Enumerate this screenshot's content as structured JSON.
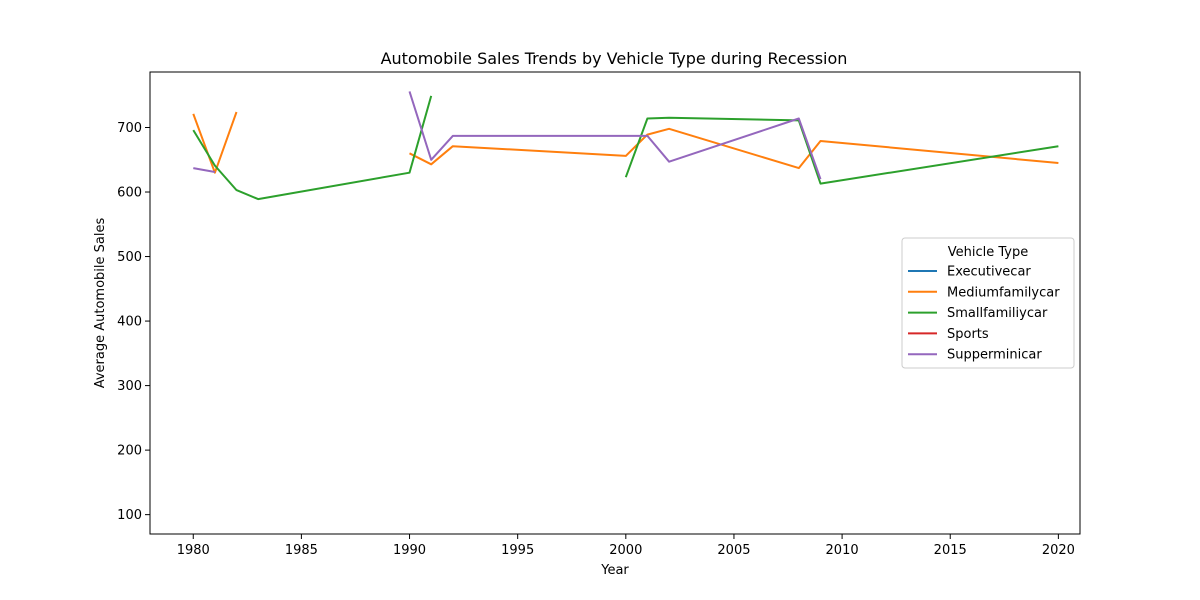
{
  "chart_data": {
    "type": "line",
    "title": "Automobile Sales Trends by Vehicle Type during Recession",
    "xlabel": "Year",
    "ylabel": "Average Automobile Sales",
    "xlim": [
      1978,
      2021
    ],
    "ylim": [
      70,
      786
    ],
    "xticks": [
      1980,
      1985,
      1990,
      1995,
      2000,
      2005,
      2010,
      2015,
      2020
    ],
    "yticks": [
      100,
      200,
      300,
      400,
      500,
      600,
      700
    ],
    "grid": false,
    "legend": {
      "title": "Vehicle Type",
      "placement": "center-right"
    },
    "series": [
      {
        "name": "Executivecar",
        "color": "#1f77b4",
        "points": []
      },
      {
        "name": "Mediumfamilycar",
        "color": "#ff7f0e",
        "points": [
          [
            1980,
            721
          ],
          [
            1981,
            630
          ],
          [
            1982,
            724
          ],
          null,
          [
            1990,
            660
          ],
          [
            1991,
            643
          ],
          [
            1992,
            671
          ],
          [
            2000,
            656
          ],
          [
            2001,
            689
          ],
          [
            2002,
            698
          ],
          [
            2008,
            637
          ],
          [
            2009,
            679
          ],
          [
            2020,
            645
          ]
        ]
      },
      {
        "name": "Smallfamiliycar",
        "color": "#2ca02c",
        "points": [
          [
            1980,
            696
          ],
          [
            1981,
            641
          ],
          [
            1982,
            603
          ],
          [
            1983,
            589
          ],
          [
            1990,
            630
          ],
          [
            1991,
            749
          ],
          null,
          [
            2000,
            623
          ],
          [
            2001,
            714
          ],
          [
            2002,
            715
          ],
          [
            2008,
            711
          ],
          [
            2009,
            613
          ],
          [
            2020,
            671
          ]
        ]
      },
      {
        "name": "Sports",
        "color": "#d62728",
        "points": []
      },
      {
        "name": "Supperminicar",
        "color": "#9467bd",
        "points": [
          [
            1980,
            637
          ],
          [
            1981,
            631
          ],
          null,
          [
            1990,
            756
          ],
          [
            1991,
            650
          ],
          [
            1992,
            687
          ],
          [
            2001,
            687
          ],
          [
            2002,
            647
          ],
          [
            2008,
            714
          ],
          [
            2009,
            620
          ]
        ]
      }
    ]
  }
}
